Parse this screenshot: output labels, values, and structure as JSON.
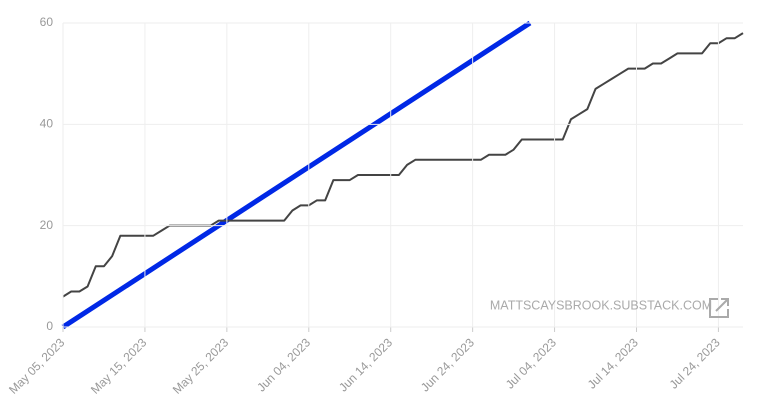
{
  "chart_data": {
    "type": "line",
    "watermark": "MATTSCAYSBROOK.SUBSTACK.COM",
    "xlim": [
      "2023-05-05",
      "2023-07-27"
    ],
    "ylim": [
      0,
      60
    ],
    "yticks": [
      0,
      20,
      40,
      60
    ],
    "xticks": [
      {
        "value": "2023-05-05",
        "label": "May 05, 2023"
      },
      {
        "value": "2023-05-15",
        "label": "May 15, 2023"
      },
      {
        "value": "2023-05-25",
        "label": "May 25, 2023"
      },
      {
        "value": "2023-06-04",
        "label": "Jun 04, 2023"
      },
      {
        "value": "2023-06-14",
        "label": "Jun 14, 2023"
      },
      {
        "value": "2023-06-24",
        "label": "Jun 24, 2023"
      },
      {
        "value": "2023-07-04",
        "label": "Jul 04, 2023"
      },
      {
        "value": "2023-07-14",
        "label": "Jul 14, 2023"
      },
      {
        "value": "2023-07-24",
        "label": "Jul 24, 2023"
      }
    ],
    "grid": true,
    "series": [
      {
        "color": "#0028e6",
        "x": [
          "2023-05-05",
          "2023-07-01"
        ],
        "values": [
          0,
          60
        ]
      },
      {
        "color": "#444444",
        "x": [
          "2023-05-05",
          "2023-05-06",
          "2023-05-07",
          "2023-05-08",
          "2023-05-09",
          "2023-05-10",
          "2023-05-11",
          "2023-05-12",
          "2023-05-13",
          "2023-05-14",
          "2023-05-15",
          "2023-05-16",
          "2023-05-17",
          "2023-05-18",
          "2023-05-19",
          "2023-05-20",
          "2023-05-21",
          "2023-05-22",
          "2023-05-23",
          "2023-05-24",
          "2023-05-25",
          "2023-05-26",
          "2023-05-27",
          "2023-05-28",
          "2023-05-29",
          "2023-05-30",
          "2023-05-31",
          "2023-06-01",
          "2023-06-02",
          "2023-06-03",
          "2023-06-04",
          "2023-06-05",
          "2023-06-06",
          "2023-06-07",
          "2023-06-08",
          "2023-06-09",
          "2023-06-10",
          "2023-06-11",
          "2023-06-12",
          "2023-06-13",
          "2023-06-14",
          "2023-06-15",
          "2023-06-16",
          "2023-06-17",
          "2023-06-18",
          "2023-06-19",
          "2023-06-20",
          "2023-06-21",
          "2023-06-22",
          "2023-06-23",
          "2023-06-24",
          "2023-06-25",
          "2023-06-26",
          "2023-06-27",
          "2023-06-28",
          "2023-06-29",
          "2023-06-30",
          "2023-07-01",
          "2023-07-02",
          "2023-07-03",
          "2023-07-04",
          "2023-07-05",
          "2023-07-06",
          "2023-07-07",
          "2023-07-08",
          "2023-07-09",
          "2023-07-10",
          "2023-07-11",
          "2023-07-12",
          "2023-07-13",
          "2023-07-14",
          "2023-07-15",
          "2023-07-16",
          "2023-07-17",
          "2023-07-18",
          "2023-07-19",
          "2023-07-20",
          "2023-07-21",
          "2023-07-22",
          "2023-07-23",
          "2023-07-24",
          "2023-07-25",
          "2023-07-26",
          "2023-07-27"
        ],
        "values": [
          6,
          7,
          7,
          8,
          12,
          12,
          14,
          18,
          18,
          18,
          18,
          18,
          19,
          20,
          20,
          20,
          20,
          20,
          20,
          21,
          21,
          21,
          21,
          21,
          21,
          21,
          21,
          21,
          23,
          24,
          24,
          25,
          25,
          29,
          29,
          29,
          30,
          30,
          30,
          30,
          30,
          30,
          32,
          33,
          33,
          33,
          33,
          33,
          33,
          33,
          33,
          33,
          34,
          34,
          34,
          35,
          37,
          37,
          37,
          37,
          37,
          37,
          41,
          42,
          43,
          47,
          48,
          49,
          50,
          51,
          51,
          51,
          52,
          52,
          53,
          54,
          54,
          54,
          54,
          56,
          56,
          57,
          57,
          58
        ]
      }
    ]
  }
}
